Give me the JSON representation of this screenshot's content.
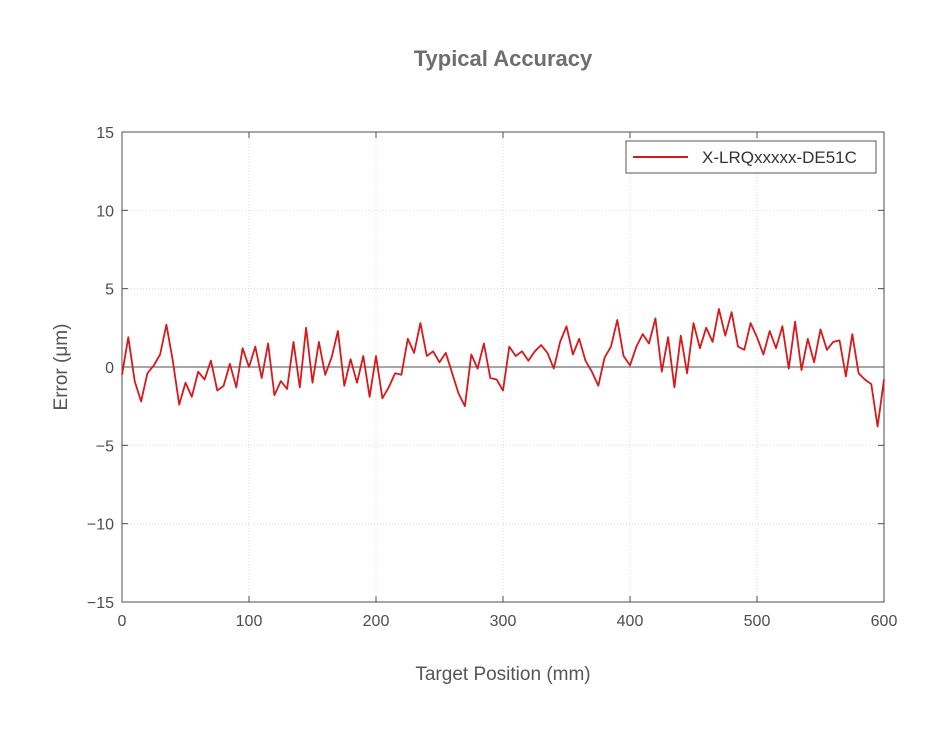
{
  "chart_data": {
    "type": "line",
    "title": "Typical Accuracy",
    "xlabel": "Target Position (mm)",
    "ylabel": "Error (μm)",
    "xlim": [
      0,
      600
    ],
    "ylim": [
      -15,
      15
    ],
    "xticks": [
      0,
      100,
      200,
      300,
      400,
      500,
      600
    ],
    "yticks": [
      15,
      10,
      5,
      0,
      -5,
      -10,
      -15
    ],
    "ytick_labels": [
      "15",
      "10",
      "5",
      "0",
      "−5",
      "−10",
      "−15"
    ],
    "grid": true,
    "zero_line": true,
    "legend_position": "top-right",
    "series": [
      {
        "name": "X-LRQxxxxx-DE51C",
        "color": "#d7191c",
        "x": [
          0,
          5,
          10,
          15,
          20,
          25,
          30,
          35,
          40,
          45,
          50,
          55,
          60,
          65,
          70,
          75,
          80,
          85,
          90,
          95,
          100,
          105,
          110,
          115,
          120,
          125,
          130,
          135,
          140,
          145,
          150,
          155,
          160,
          165,
          170,
          175,
          180,
          185,
          190,
          195,
          200,
          205,
          210,
          215,
          220,
          225,
          230,
          235,
          240,
          245,
          250,
          255,
          260,
          265,
          270,
          275,
          280,
          285,
          290,
          295,
          300,
          305,
          310,
          315,
          320,
          325,
          330,
          335,
          340,
          345,
          350,
          355,
          360,
          365,
          370,
          375,
          380,
          385,
          390,
          395,
          400,
          405,
          410,
          415,
          420,
          425,
          430,
          435,
          440,
          445,
          450,
          455,
          460,
          465,
          470,
          475,
          480,
          485,
          490,
          495,
          500,
          505,
          510,
          515,
          520,
          525,
          530,
          535,
          540,
          545,
          550,
          555,
          560,
          565,
          570,
          575,
          580,
          585,
          590,
          595,
          600
        ],
        "y": [
          -0.5,
          1.9,
          -0.9,
          -2.2,
          -0.4,
          0.1,
          0.8,
          2.7,
          0.4,
          -2.4,
          -1.0,
          -1.9,
          -0.3,
          -0.8,
          0.4,
          -1.5,
          -1.2,
          0.2,
          -1.3,
          1.2,
          0.0,
          1.3,
          -0.7,
          1.5,
          -1.8,
          -0.9,
          -1.4,
          1.6,
          -1.3,
          2.5,
          -1.0,
          1.6,
          -0.5,
          0.6,
          2.3,
          -1.2,
          0.5,
          -1.0,
          0.7,
          -1.9,
          0.7,
          -2.0,
          -1.3,
          -0.4,
          -0.5,
          1.8,
          0.9,
          2.8,
          0.7,
          1.0,
          0.3,
          0.9,
          -0.4,
          -1.7,
          -2.5,
          0.8,
          -0.1,
          1.5,
          -0.7,
          -0.8,
          -1.5,
          1.3,
          0.7,
          1.0,
          0.4,
          1.0,
          1.4,
          0.9,
          -0.1,
          1.6,
          2.6,
          0.8,
          1.8,
          0.4,
          -0.3,
          -1.2,
          0.6,
          1.3,
          3.0,
          0.7,
          0.1,
          1.3,
          2.1,
          1.5,
          3.1,
          -0.3,
          1.9,
          -1.3,
          2.0,
          -0.4,
          2.8,
          1.2,
          2.5,
          1.6,
          3.7,
          2.0,
          3.5,
          1.3,
          1.1,
          2.8,
          1.9,
          0.8,
          2.3,
          1.2,
          2.6,
          -0.1,
          2.9,
          -0.2,
          1.8,
          0.3,
          2.4,
          1.1,
          1.6,
          1.7,
          -0.6,
          2.1,
          -0.4,
          -0.8,
          -1.1,
          -3.8,
          -0.8
        ]
      }
    ]
  }
}
